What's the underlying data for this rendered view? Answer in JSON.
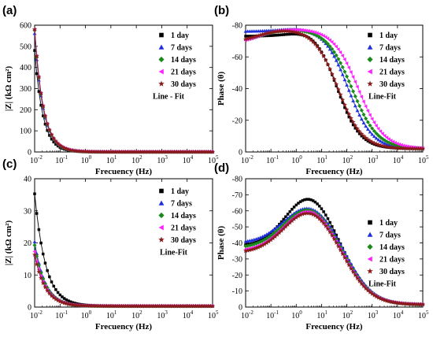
{
  "colors": {
    "1 day": "#000000",
    "7 days": "#1f2fe0",
    "14 days": "#1a8a1a",
    "21 days": "#ff22ff",
    "30 days": "#8b1a1a"
  },
  "markers": {
    "1 day": "square",
    "7 days": "triangle",
    "14 days": "diamond",
    "21 days": "triangle-left",
    "30 days": "star"
  },
  "chart_data": [
    {
      "id": "a",
      "panel_label": "(a)",
      "type": "line",
      "xlabel": "Frecuency (Hz)",
      "ylabel": "|Z| (kΩ cm²)",
      "xscale": "log",
      "xlim": [
        0.01,
        100000
      ],
      "ylim": [
        0,
        600
      ],
      "yticks": [
        "0",
        "100",
        "200",
        "300",
        "400",
        "500",
        "600"
      ],
      "y_inverted": false,
      "legend": [
        "1 day",
        "7 days",
        "14 days",
        "21 days",
        "30 days"
      ],
      "legend_note": "Line - Fit",
      "series": [
        {
          "name": "1 day",
          "peak": 480,
          "shape": 1.35
        },
        {
          "name": "7 days",
          "peak": 560,
          "shape": 1.3
        },
        {
          "name": "14 days",
          "peak": 575,
          "shape": 1.3
        },
        {
          "name": "21 days",
          "peak": 580,
          "shape": 1.28
        },
        {
          "name": "30 days",
          "peak": 580,
          "shape": 1.28
        }
      ]
    },
    {
      "id": "b",
      "panel_label": "(b)",
      "type": "line",
      "xlabel": "Frecuency (Hz)",
      "ylabel": "Phase (θ)",
      "xscale": "log",
      "xlim": [
        0.01,
        100000
      ],
      "ylim": [
        0,
        -80
      ],
      "yticks": [
        "0",
        "-20",
        "-40",
        "-60",
        "-80"
      ],
      "y_inverted": true,
      "legend": [
        "1 day",
        "7 days",
        "14 days",
        "21 days",
        "30 days"
      ],
      "legend_note": "Line-Fit",
      "series": [
        {
          "name": "1 day",
          "low": -73,
          "plateau": -80,
          "rise": 2.0,
          "fc": 40,
          "slope": 1.1
        },
        {
          "name": "7 days",
          "low": -76,
          "plateau": -79,
          "rise": 1.5,
          "fc": 110,
          "slope": 1.05
        },
        {
          "name": "14 days",
          "low": -69,
          "plateau": -78,
          "rise": 0.6,
          "fc": 160,
          "slope": 1.0
        },
        {
          "name": "21 days",
          "low": -68,
          "plateau": -78,
          "rise": 0.5,
          "fc": 280,
          "slope": 1.0
        },
        {
          "name": "30 days",
          "low": -69,
          "plateau": -78,
          "rise": 0.5,
          "fc": 45,
          "slope": 1.05
        }
      ]
    },
    {
      "id": "c",
      "panel_label": "(c)",
      "type": "line",
      "xlabel": "Frecuency (Hz)",
      "ylabel": "|Z| (kΩ cm²)",
      "xscale": "log",
      "xlim": [
        0.01,
        100000
      ],
      "ylim": [
        0,
        40
      ],
      "yticks": [
        "0",
        "10",
        "20",
        "30",
        "40"
      ],
      "y_inverted": false,
      "legend": [
        "1 day",
        "7 days",
        "14 days",
        "21 days",
        "30 days"
      ],
      "legend_note": "Line-Fit",
      "series": [
        {
          "name": "1 day",
          "peak": 35,
          "shape": 1.0
        },
        {
          "name": "7 days",
          "peak": 20,
          "shape": 1.05
        },
        {
          "name": "14 days",
          "peak": 19,
          "shape": 1.05
        },
        {
          "name": "21 days",
          "peak": 17,
          "shape": 1.05
        },
        {
          "name": "30 days",
          "peak": 16,
          "shape": 1.05
        }
      ]
    },
    {
      "id": "d",
      "panel_label": "(d)",
      "type": "line",
      "xlabel": "Frecuency (Hz)",
      "ylabel": "Phase (θ)",
      "xscale": "log",
      "xlim": [
        0.01,
        100000
      ],
      "ylim": [
        0,
        -80
      ],
      "yticks": [
        "0",
        "-10",
        "-20",
        "-30",
        "-40",
        "-50",
        "-60",
        "-70",
        "-80"
      ],
      "y_inverted": true,
      "legend": [
        "1 day",
        "7 days",
        "14 days",
        "21 days",
        "30 days"
      ],
      "legend_note": "Line-Fit",
      "series": [
        {
          "name": "1 day",
          "base": -38,
          "peak": -69,
          "width": 1.0
        },
        {
          "name": "7 days",
          "base": -40,
          "peak": -63,
          "width": 1.05
        },
        {
          "name": "14 days",
          "base": -37,
          "peak": -62,
          "width": 1.05
        },
        {
          "name": "21 days",
          "base": -35,
          "peak": -61,
          "width": 1.05
        },
        {
          "name": "30 days",
          "base": -34,
          "peak": -60,
          "width": 1.05
        }
      ]
    }
  ]
}
